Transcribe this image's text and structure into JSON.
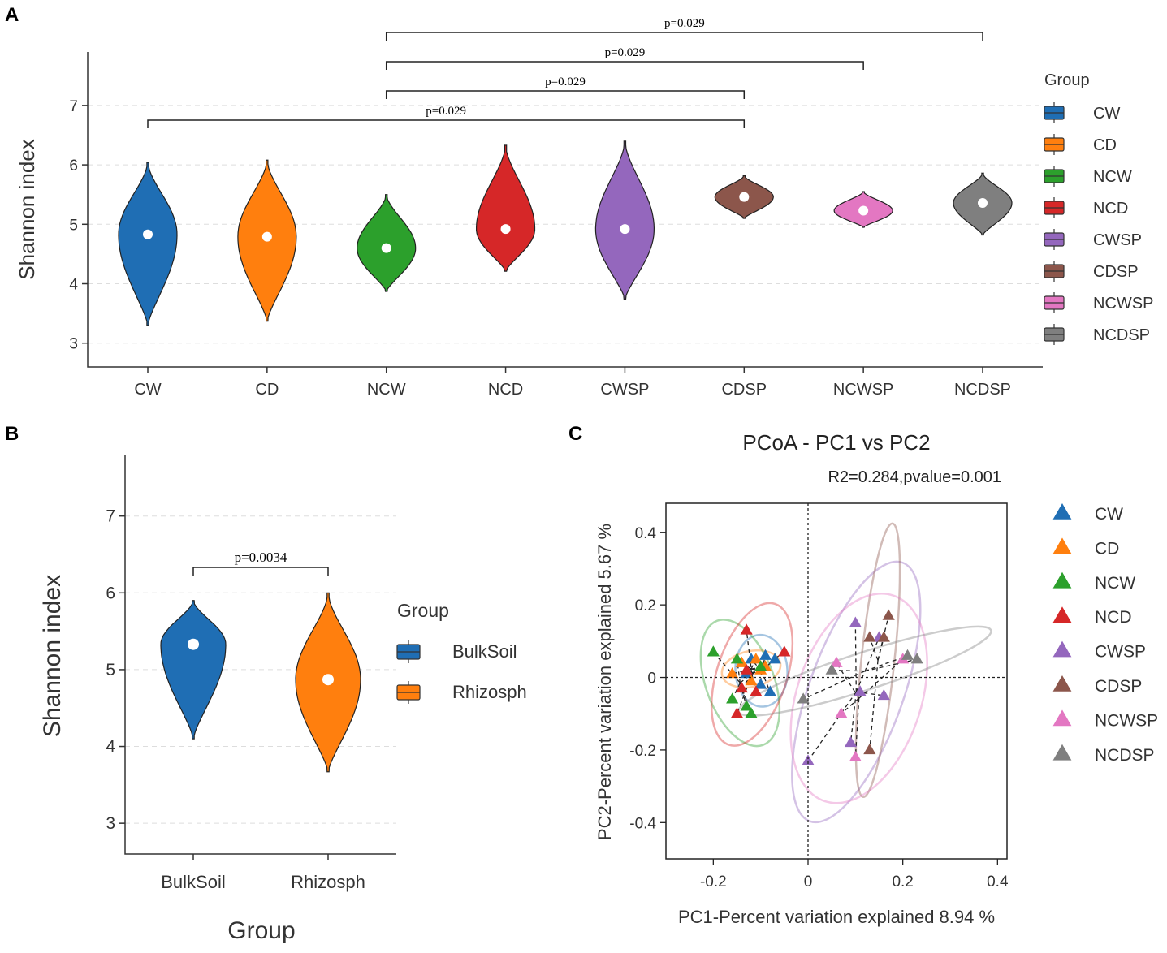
{
  "chart_data": [
    {
      "panel": "A",
      "type": "violin",
      "title": "",
      "xlabel": "",
      "ylabel": "Shannon index",
      "ylim": [
        2.6,
        7.9
      ],
      "yticks": [
        3,
        4,
        5,
        6,
        7
      ],
      "grid": true,
      "categories": [
        "CW",
        "CD",
        "NCW",
        "NCD",
        "CWSP",
        "CDSP",
        "NCWSP",
        "NCDSP"
      ],
      "colors": [
        "#1f6eb4",
        "#ff7f0e",
        "#2ca02c",
        "#d62728",
        "#9467bd",
        "#8c564b",
        "#e377c2",
        "#7f7f7f"
      ],
      "medians": [
        4.83,
        4.79,
        4.6,
        4.92,
        4.92,
        5.46,
        5.23,
        5.36
      ],
      "mins": [
        3.3,
        3.37,
        3.87,
        4.21,
        3.74,
        5.1,
        4.95,
        4.82
      ],
      "maxs": [
        6.04,
        6.08,
        5.5,
        6.33,
        6.4,
        5.82,
        5.55,
        5.86
      ],
      "comparisons": [
        {
          "from": "CW",
          "to": "CDSP",
          "label": "p=0.029"
        },
        {
          "from": "NCW",
          "to": "CDSP",
          "label": "p=0.029"
        },
        {
          "from": "NCW",
          "to": "NCWSP",
          "label": "p=0.029"
        },
        {
          "from": "NCW",
          "to": "NCDSP",
          "label": "p=0.029"
        }
      ],
      "legend": {
        "title": "Group",
        "position": "right",
        "items": [
          "CW",
          "CD",
          "NCW",
          "NCD",
          "CWSP",
          "CDSP",
          "NCWSP",
          "NCDSP"
        ]
      }
    },
    {
      "panel": "B",
      "type": "violin",
      "title": "",
      "xlabel": "Group",
      "ylabel": "Shannon index",
      "ylim": [
        2.6,
        7.8
      ],
      "yticks": [
        3,
        4,
        5,
        6,
        7
      ],
      "grid": true,
      "categories": [
        "BulkSoil",
        "Rhizosph"
      ],
      "colors": [
        "#1f6eb4",
        "#ff7f0e"
      ],
      "medians": [
        5.33,
        4.87
      ],
      "mins": [
        4.1,
        3.67
      ],
      "maxs": [
        5.9,
        6.0
      ],
      "comparisons": [
        {
          "from": "BulkSoil",
          "to": "Rhizosph",
          "label": "p=0.0034"
        }
      ],
      "legend": {
        "title": "Group",
        "position": "right",
        "items": [
          "BulkSoil",
          "Rhizosph"
        ]
      }
    },
    {
      "panel": "C",
      "type": "scatter",
      "title": "PCoA - PC1 vs PC2",
      "subtitle": "R2=0.284,pvalue=0.001",
      "xlabel": "PC1-Percent variation explained 8.94 %",
      "ylabel": "PC2-Percent variation explained 5.67 %",
      "xlim": [
        -0.3,
        0.42
      ],
      "ylim": [
        -0.5,
        0.48
      ],
      "xticks": [
        -0.2,
        0,
        0.2,
        0.4
      ],
      "yticks": [
        -0.4,
        -0.2,
        0,
        0.2,
        0.4
      ],
      "xtick_labels": [
        "-0.2",
        "0",
        "0.2",
        "0.4"
      ],
      "ytick_labels": [
        "-0.4",
        "-0.2",
        "0",
        "0.2",
        "0.4"
      ],
      "grid": false,
      "series": [
        {
          "name": "CW",
          "color": "#1f6eb4",
          "points": [
            [
              -0.12,
              0.05
            ],
            [
              -0.09,
              0.06
            ],
            [
              -0.07,
              0.05
            ],
            [
              -0.13,
              0.01
            ],
            [
              -0.1,
              -0.02
            ],
            [
              -0.08,
              -0.04
            ]
          ]
        },
        {
          "name": "CD",
          "color": "#ff7f0e",
          "points": [
            [
              -0.14,
              0.04
            ],
            [
              -0.11,
              0.05
            ],
            [
              -0.09,
              0.03
            ],
            [
              -0.16,
              0.01
            ],
            [
              -0.12,
              -0.01
            ],
            [
              -0.1,
              0.02
            ]
          ]
        },
        {
          "name": "NCW",
          "color": "#2ca02c",
          "points": [
            [
              -0.2,
              0.07
            ],
            [
              -0.15,
              0.05
            ],
            [
              -0.1,
              0.03
            ],
            [
              -0.16,
              -0.06
            ],
            [
              -0.13,
              -0.08
            ],
            [
              -0.12,
              -0.1
            ]
          ]
        },
        {
          "name": "NCD",
          "color": "#d62728",
          "points": [
            [
              -0.13,
              0.13
            ],
            [
              -0.05,
              0.07
            ],
            [
              -0.13,
              0.02
            ],
            [
              -0.15,
              -0.1
            ],
            [
              -0.11,
              -0.04
            ],
            [
              -0.14,
              -0.03
            ]
          ]
        },
        {
          "name": "CWSP",
          "color": "#9467bd",
          "points": [
            [
              0.1,
              0.15
            ],
            [
              0.15,
              0.11
            ],
            [
              0.16,
              -0.05
            ],
            [
              0.11,
              -0.04
            ],
            [
              0.09,
              -0.18
            ],
            [
              0.0,
              -0.23
            ]
          ]
        },
        {
          "name": "CDSP",
          "color": "#8c564b",
          "points": [
            [
              0.17,
              0.17
            ],
            [
              0.13,
              0.11
            ],
            [
              0.16,
              0.11
            ],
            [
              0.13,
              -0.2
            ]
          ]
        },
        {
          "name": "NCWSP",
          "color": "#e377c2",
          "points": [
            [
              0.06,
              0.04
            ],
            [
              0.07,
              -0.1
            ],
            [
              0.1,
              -0.22
            ],
            [
              0.2,
              0.05
            ]
          ]
        },
        {
          "name": "NCDSP",
          "color": "#7f7f7f",
          "points": [
            [
              0.05,
              0.02
            ],
            [
              0.21,
              0.06
            ],
            [
              0.23,
              0.05
            ],
            [
              -0.01,
              -0.06
            ]
          ]
        }
      ],
      "legend": {
        "title": "",
        "position": "right",
        "items": [
          "CW",
          "CD",
          "NCW",
          "NCD",
          "CWSP",
          "CDSP",
          "NCWSP",
          "NCDSP"
        ]
      }
    }
  ],
  "panels": {
    "A": "A",
    "B": "B",
    "C": "C"
  }
}
